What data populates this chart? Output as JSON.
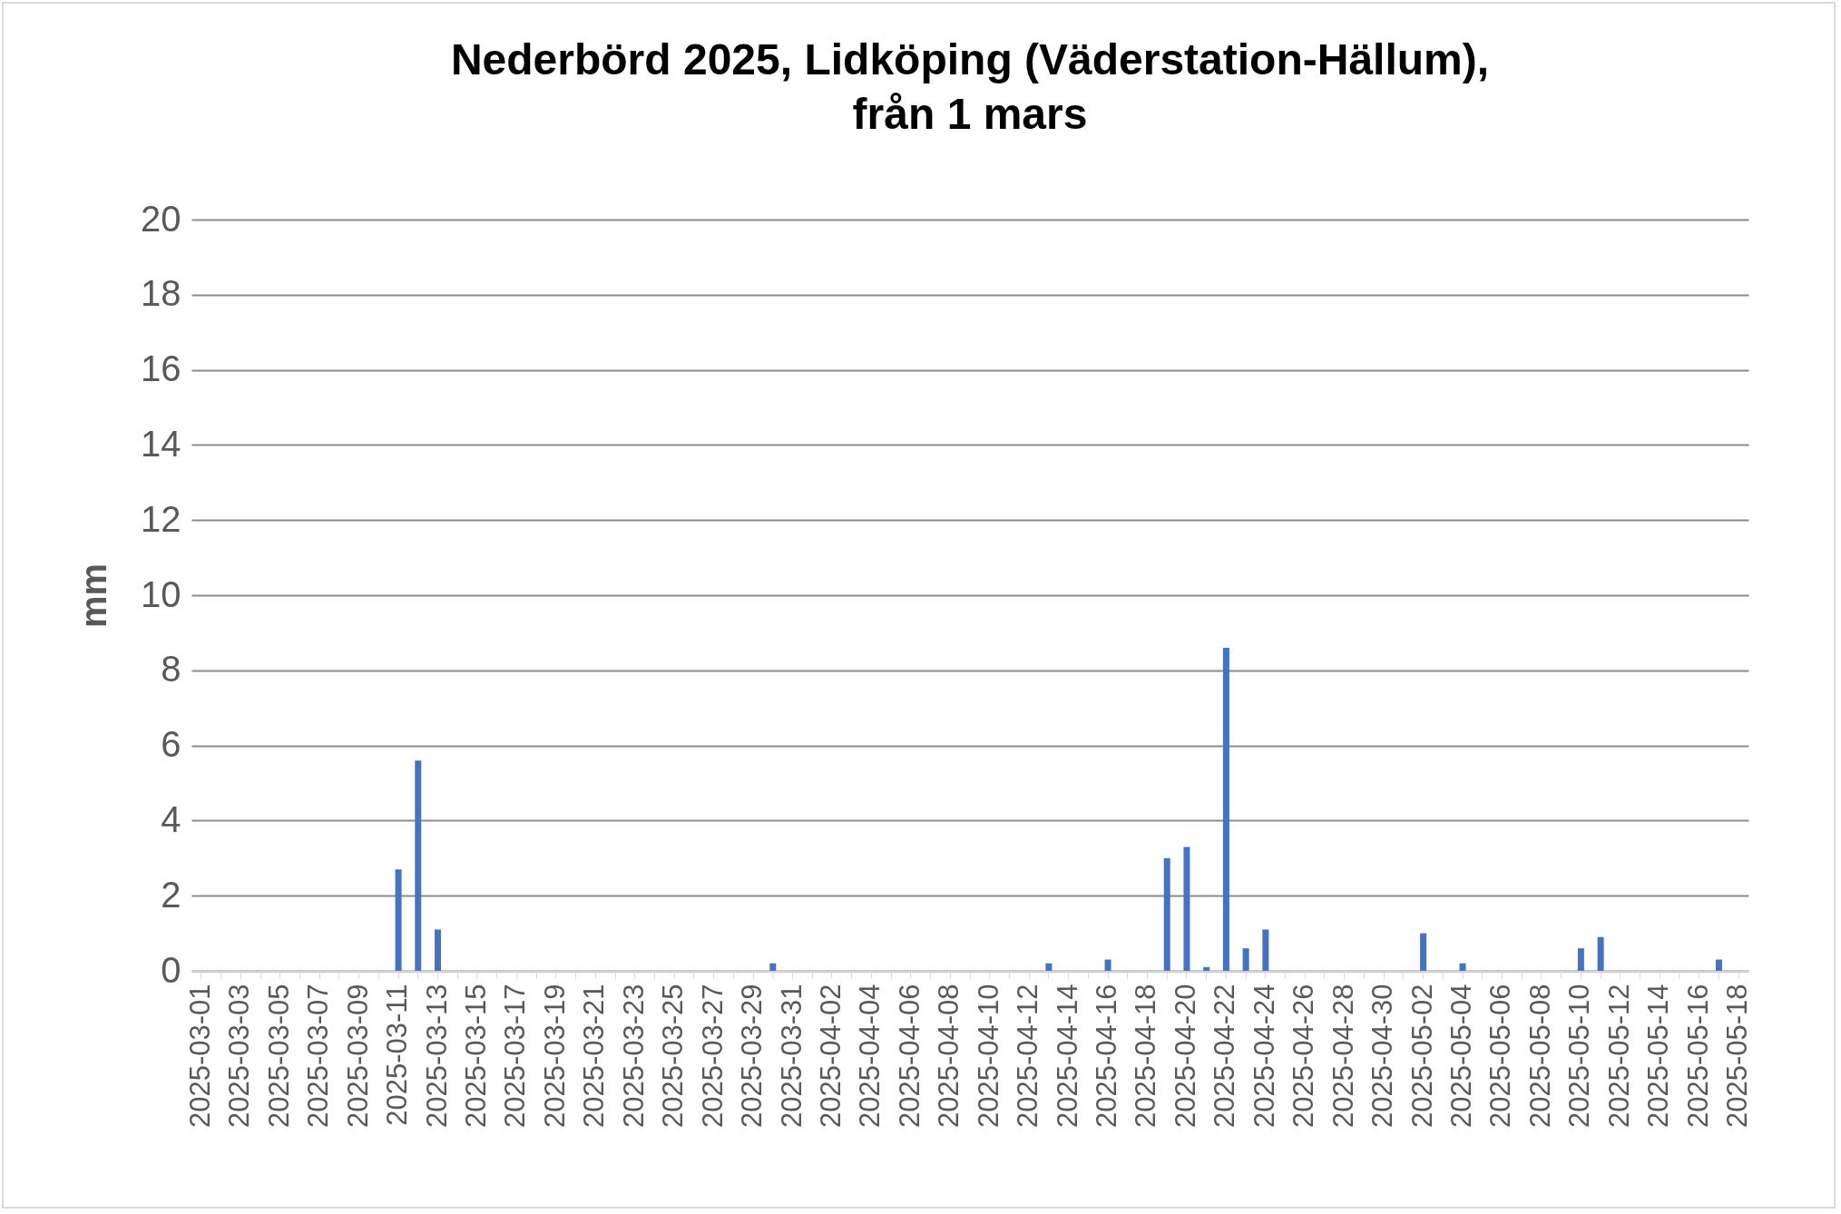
{
  "chart_data": {
    "type": "bar",
    "title": "Nederbörd 2025, Lidköping (Väderstation-Hällum),\nfrån 1 mars",
    "ylabel": "mm",
    "categories": [
      "2025-03-01",
      null,
      "2025-03-03",
      null,
      "2025-03-05",
      null,
      "2025-03-07",
      null,
      "2025-03-09",
      null,
      "2025-03-11",
      null,
      "2025-03-13",
      null,
      "2025-03-15",
      null,
      "2025-03-17",
      null,
      "2025-03-19",
      null,
      "2025-03-21",
      null,
      "2025-03-23",
      null,
      "2025-03-25",
      null,
      "2025-03-27",
      null,
      "2025-03-29",
      null,
      "2025-03-31",
      null,
      "2025-04-02",
      null,
      "2025-04-04",
      null,
      "2025-04-06",
      null,
      "2025-04-08",
      null,
      "2025-04-10",
      null,
      "2025-04-12",
      null,
      "2025-04-14",
      null,
      "2025-04-16",
      null,
      "2025-04-18",
      null,
      "2025-04-20",
      null,
      "2025-04-22",
      null,
      "2025-04-24",
      null,
      "2025-04-26",
      null,
      "2025-04-28",
      null,
      "2025-04-30",
      null,
      "2025-05-02",
      null,
      "2025-05-04",
      null,
      "2025-05-06",
      null,
      "2025-05-08",
      null,
      "2025-05-10",
      null,
      "2025-05-12",
      null,
      "2025-05-14",
      null,
      "2025-05-16",
      null,
      "2025-05-18"
    ],
    "values": [
      0,
      0,
      0,
      0,
      0,
      0,
      0,
      0,
      0,
      0,
      2.7,
      5.6,
      1.1,
      0,
      0,
      0,
      0,
      0,
      0,
      0,
      0,
      0,
      0,
      0,
      0,
      0,
      0,
      0,
      0,
      0.2,
      0,
      0,
      0,
      0,
      0,
      0,
      0,
      0,
      0,
      0,
      0,
      0,
      0,
      0.2,
      0,
      0,
      0.3,
      0,
      0,
      3.0,
      3.3,
      0.1,
      8.6,
      0.6,
      1.1,
      0,
      0,
      0,
      0,
      0,
      0,
      0,
      1.0,
      0,
      0.2,
      0,
      0,
      0,
      0,
      0,
      0.6,
      0.9,
      0,
      0,
      0,
      0,
      0,
      0.3,
      0
    ],
    "color": "#4472c4",
    "ylim": [
      0,
      20
    ],
    "yticks": [
      0,
      2,
      4,
      6,
      8,
      10,
      12,
      14,
      16,
      18,
      20
    ],
    "grid": "y"
  }
}
